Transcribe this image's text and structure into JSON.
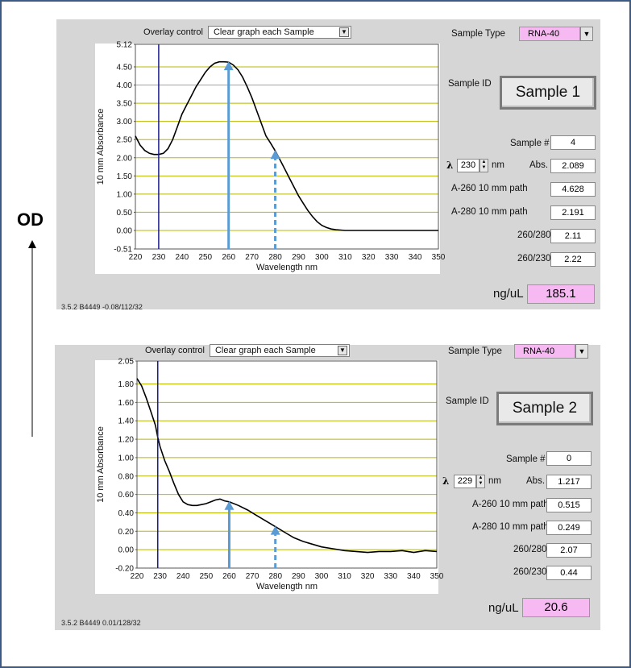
{
  "annotations": {
    "od_label": "OD",
    "lambda_label": "λ"
  },
  "panels": [
    {
      "overlay_label": "Overlay control",
      "overlay_value": "Clear graph each Sample",
      "sample_type_label": "Sample Type",
      "sample_type_value": "RNA-40",
      "sample_id_label": "Sample ID",
      "sample_id_value": "Sample 1",
      "sample_num_label": "Sample #",
      "sample_num_value": "4",
      "lambda_symbol": "λ",
      "lambda_value": "230",
      "nm_label": "nm",
      "abs_label": "Abs.",
      "abs_value": "2.089",
      "a260_label": "A-260 10 mm path",
      "a260_value": "4.628",
      "a280_label": "A-280 10 mm path",
      "a280_value": "2.191",
      "r260_280_label": "260/280",
      "r260_280_value": "2.11",
      "r260_230_label": "260/230",
      "r260_230_value": "2.22",
      "ng_label": "ng/uL",
      "ng_value": "185.1",
      "footer": "3.5.2 B4449 -0.08/112/32"
    },
    {
      "overlay_label": "Overlay control",
      "overlay_value": "Clear graph each Sample",
      "sample_type_label": "Sample Type",
      "sample_type_value": "RNA-40",
      "sample_id_label": "Sample ID",
      "sample_id_value": "Sample 2",
      "sample_num_label": "Sample #",
      "sample_num_value": "0",
      "lambda_symbol": "λ",
      "lambda_value": "229",
      "nm_label": "nm",
      "abs_label": "Abs.",
      "abs_value": "1.217",
      "a260_label": "A-260 10 mm path",
      "a260_value": "0.515",
      "a280_label": "A-280 10 mm path",
      "a280_value": "0.249",
      "r260_280_label": "260/280",
      "r260_280_value": "2.07",
      "r260_230_label": "260/230",
      "r260_230_value": "0.44",
      "ng_label": "ng/uL",
      "ng_value": "20.6",
      "footer": "3.5.2 B4449 0.01/128/32"
    }
  ],
  "colors": {
    "panel_bg": "#d6d6d6",
    "grid": "#b8b800",
    "curve": "#000000",
    "cursor": "#1a1a8c",
    "arrow": "#5b9bd5",
    "pink_value": "#f7b9f2",
    "frame": "#3c5a86"
  },
  "chart_data": [
    {
      "type": "line",
      "xlabel": "Wavelength nm",
      "ylabel": "10 mm Absorbance",
      "xlim": [
        220,
        350
      ],
      "ylim": [
        -0.51,
        5.12
      ],
      "x_ticks": [
        "220",
        "230",
        "240",
        "250",
        "260",
        "270",
        "280",
        "290",
        "300",
        "310",
        "320",
        "330",
        "340",
        "350"
      ],
      "y_ticks": [
        {
          "value": 5.12,
          "label": "5.12"
        },
        {
          "value": 4.5,
          "label": "4.50"
        },
        {
          "value": 4.0,
          "label": "4.00"
        },
        {
          "value": 3.5,
          "label": "3.50"
        },
        {
          "value": 3.0,
          "label": "3.00"
        },
        {
          "value": 2.5,
          "label": "2.50"
        },
        {
          "value": 2.0,
          "label": "2.00"
        },
        {
          "value": 1.5,
          "label": "1.50"
        },
        {
          "value": 1.0,
          "label": "1.00"
        },
        {
          "value": 0.5,
          "label": "0.50"
        },
        {
          "value": 0.0,
          "label": "0.00"
        },
        {
          "value": -0.51,
          "label": "-0.51"
        }
      ],
      "grid_values": [
        4.5,
        4.0,
        3.5,
        3.0,
        2.5,
        2.0,
        1.5,
        1.0,
        0.5,
        0.0
      ],
      "grid": true,
      "cursor_x": 230,
      "arrows": [
        {
          "x": 260,
          "top": 4.63,
          "style": "solid"
        },
        {
          "x": 280,
          "top": 2.19,
          "style": "dashed"
        }
      ],
      "series": [
        {
          "x": [
            220,
            222,
            224,
            226,
            228,
            230,
            232,
            234,
            236,
            238,
            240,
            242,
            244,
            246,
            248,
            250,
            252,
            254,
            256,
            258,
            260,
            262,
            264,
            266,
            268,
            270,
            272,
            274,
            276,
            278,
            280,
            282,
            284,
            286,
            288,
            290,
            292,
            294,
            296,
            298,
            300,
            302,
            304,
            306,
            308,
            310,
            315,
            320,
            330,
            340,
            350
          ],
          "y": [
            2.6,
            2.35,
            2.2,
            2.12,
            2.09,
            2.09,
            2.12,
            2.25,
            2.5,
            2.85,
            3.2,
            3.45,
            3.7,
            3.95,
            4.15,
            4.35,
            4.5,
            4.6,
            4.64,
            4.64,
            4.63,
            4.55,
            4.42,
            4.22,
            3.95,
            3.65,
            3.3,
            2.95,
            2.6,
            2.4,
            2.19,
            1.95,
            1.7,
            1.45,
            1.2,
            0.95,
            0.75,
            0.55,
            0.38,
            0.24,
            0.14,
            0.08,
            0.04,
            0.02,
            0.01,
            0.0,
            0.0,
            0.0,
            0.0,
            0.0,
            0.0
          ]
        }
      ]
    },
    {
      "type": "line",
      "xlabel": "Wavelength nm",
      "ylabel": "10 mm Absorbance",
      "xlim": [
        220,
        350
      ],
      "ylim": [
        -0.2,
        2.05
      ],
      "x_ticks": [
        "220",
        "230",
        "240",
        "250",
        "260",
        "270",
        "280",
        "290",
        "300",
        "310",
        "320",
        "330",
        "340",
        "350"
      ],
      "y_ticks": [
        {
          "value": 2.05,
          "label": "2.05"
        },
        {
          "value": 1.8,
          "label": "1.80"
        },
        {
          "value": 1.6,
          "label": "1.60"
        },
        {
          "value": 1.4,
          "label": "1.40"
        },
        {
          "value": 1.2,
          "label": "1.20"
        },
        {
          "value": 1.0,
          "label": "1.00"
        },
        {
          "value": 0.8,
          "label": "0.80"
        },
        {
          "value": 0.6,
          "label": "0.60"
        },
        {
          "value": 0.4,
          "label": "0.40"
        },
        {
          "value": 0.2,
          "label": "0.20"
        },
        {
          "value": 0.0,
          "label": "0.00"
        },
        {
          "value": -0.2,
          "label": "-0.20"
        }
      ],
      "grid_values": [
        1.8,
        1.6,
        1.4,
        1.2,
        1.0,
        0.8,
        0.6,
        0.4,
        0.2,
        0.0
      ],
      "grid": true,
      "cursor_x": 229,
      "arrows": [
        {
          "x": 260,
          "top": 0.52,
          "style": "solid"
        },
        {
          "x": 280,
          "top": 0.25,
          "style": "dashed"
        }
      ],
      "series": [
        {
          "x": [
            220,
            222,
            224,
            226,
            228,
            229,
            230,
            232,
            234,
            236,
            238,
            240,
            242,
            244,
            246,
            248,
            250,
            252,
            254,
            256,
            258,
            260,
            264,
            268,
            272,
            276,
            280,
            284,
            288,
            292,
            296,
            300,
            305,
            310,
            315,
            320,
            325,
            330,
            335,
            340,
            345,
            350
          ],
          "y": [
            1.86,
            1.78,
            1.65,
            1.5,
            1.35,
            1.22,
            1.12,
            0.97,
            0.85,
            0.72,
            0.6,
            0.52,
            0.49,
            0.48,
            0.48,
            0.49,
            0.5,
            0.52,
            0.54,
            0.55,
            0.53,
            0.52,
            0.48,
            0.43,
            0.37,
            0.31,
            0.25,
            0.19,
            0.13,
            0.09,
            0.06,
            0.03,
            0.01,
            -0.01,
            -0.02,
            -0.03,
            -0.02,
            -0.02,
            -0.01,
            -0.03,
            -0.01,
            -0.02
          ]
        }
      ]
    }
  ]
}
